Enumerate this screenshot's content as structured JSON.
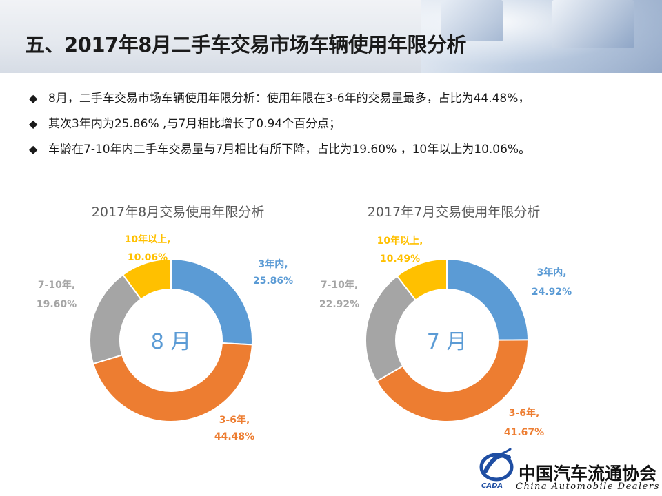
{
  "page": {
    "title": "五、2017年8月二手车交易市场车辆使用年限分析",
    "bullets": [
      "8月，二手车交易市场车辆使用年限分析：使用年限在3-6年的交易量最多，占比为44.48%，",
      "其次3年内为25.86% ,与7月相比增长了0.94个百分点；",
      "车龄在7-10年内二手车交易量与7月相比有所下降，占比为19.60% ，10年以上为10.06%。"
    ],
    "bullet_marker": "◆"
  },
  "colors": {
    "within3": "#5B9BD5",
    "y3to6": "#ED7D31",
    "y7to10": "#A5A5A5",
    "over10": "#FFC000",
    "center_text": "#5B9BD5",
    "chart_title": "#595959"
  },
  "chart_data": [
    {
      "type": "pie",
      "donut": true,
      "title": "2017年8月交易使用年限分析",
      "center_label": "8 月",
      "slices": [
        {
          "label": "3年内,",
          "value": 25.86,
          "value_label": "25.86%",
          "color": "#5B9BD5"
        },
        {
          "label": "3-6年,",
          "value": 44.48,
          "value_label": "44.48%",
          "color": "#ED7D31"
        },
        {
          "label": "7-10年,",
          "value": 19.6,
          "value_label": "19.60%",
          "color": "#A5A5A5"
        },
        {
          "label": "10年以上,",
          "value": 10.06,
          "value_label": "10.06%",
          "color": "#FFC000"
        }
      ]
    },
    {
      "type": "pie",
      "donut": true,
      "title": "2017年7月交易使用年限分析",
      "center_label": "7 月",
      "slices": [
        {
          "label": "3年内,",
          "value": 24.92,
          "value_label": "24.92%",
          "color": "#5B9BD5"
        },
        {
          "label": "3-6年,",
          "value": 41.67,
          "value_label": "41.67%",
          "color": "#ED7D31"
        },
        {
          "label": "7-10年,",
          "value": 22.92,
          "value_label": "22.92%",
          "color": "#A5A5A5"
        },
        {
          "label": "10年以上,",
          "value": 10.49,
          "value_label": "10.49%",
          "color": "#FFC000"
        }
      ]
    }
  ],
  "logo": {
    "name": "中国汽车流通协会",
    "english": "China Automobile Dealers",
    "mark_text": "CADA"
  }
}
